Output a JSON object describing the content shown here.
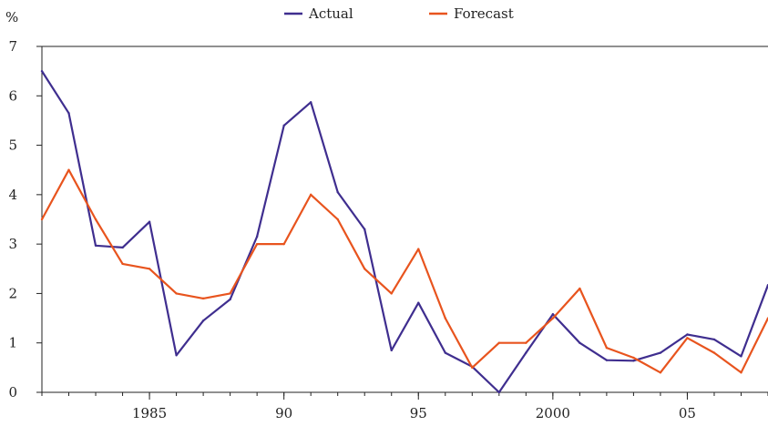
{
  "chart_data": {
    "type": "line",
    "ylabel": "%",
    "ylim": [
      0,
      7
    ],
    "xlim": [
      1981,
      2008
    ],
    "y_ticks": [
      "0",
      "1",
      "2",
      "3",
      "4",
      "5",
      "6",
      "7"
    ],
    "x_ticks": [
      {
        "value": 1985,
        "label": "1985"
      },
      {
        "value": 1990,
        "label": "90"
      },
      {
        "value": 1995,
        "label": "95"
      },
      {
        "value": 2000,
        "label": "2000"
      },
      {
        "value": 2005,
        "label": "05"
      }
    ],
    "legend_position": "top-center",
    "x": [
      1981,
      1982,
      1983,
      1984,
      1985,
      1986,
      1987,
      1988,
      1989,
      1990,
      1991,
      1992,
      1993,
      1994,
      1995,
      1996,
      1997,
      1998,
      1999,
      2000,
      2001,
      2002,
      2003,
      2004,
      2005,
      2006,
      2007,
      2008
    ],
    "series": [
      {
        "name": "Actual",
        "color": "#3f2e8f",
        "values": [
          6.5,
          5.65,
          2.97,
          2.93,
          3.45,
          0.75,
          1.45,
          1.88,
          3.15,
          5.4,
          5.87,
          4.05,
          3.3,
          0.85,
          1.81,
          0.8,
          0.52,
          0.0,
          0.8,
          1.58,
          1.0,
          0.65,
          0.64,
          0.8,
          1.17,
          1.07,
          0.73,
          2.17
        ]
      },
      {
        "name": "Forecast",
        "color": "#e8541e",
        "values": [
          3.5,
          4.5,
          3.5,
          2.6,
          2.5,
          2.0,
          1.9,
          2.0,
          3.0,
          3.0,
          4.0,
          3.5,
          2.5,
          2.0,
          2.9,
          1.5,
          0.5,
          1.0,
          1.0,
          1.5,
          2.1,
          0.9,
          0.7,
          0.4,
          1.1,
          0.8,
          0.4,
          1.5
        ]
      }
    ]
  }
}
